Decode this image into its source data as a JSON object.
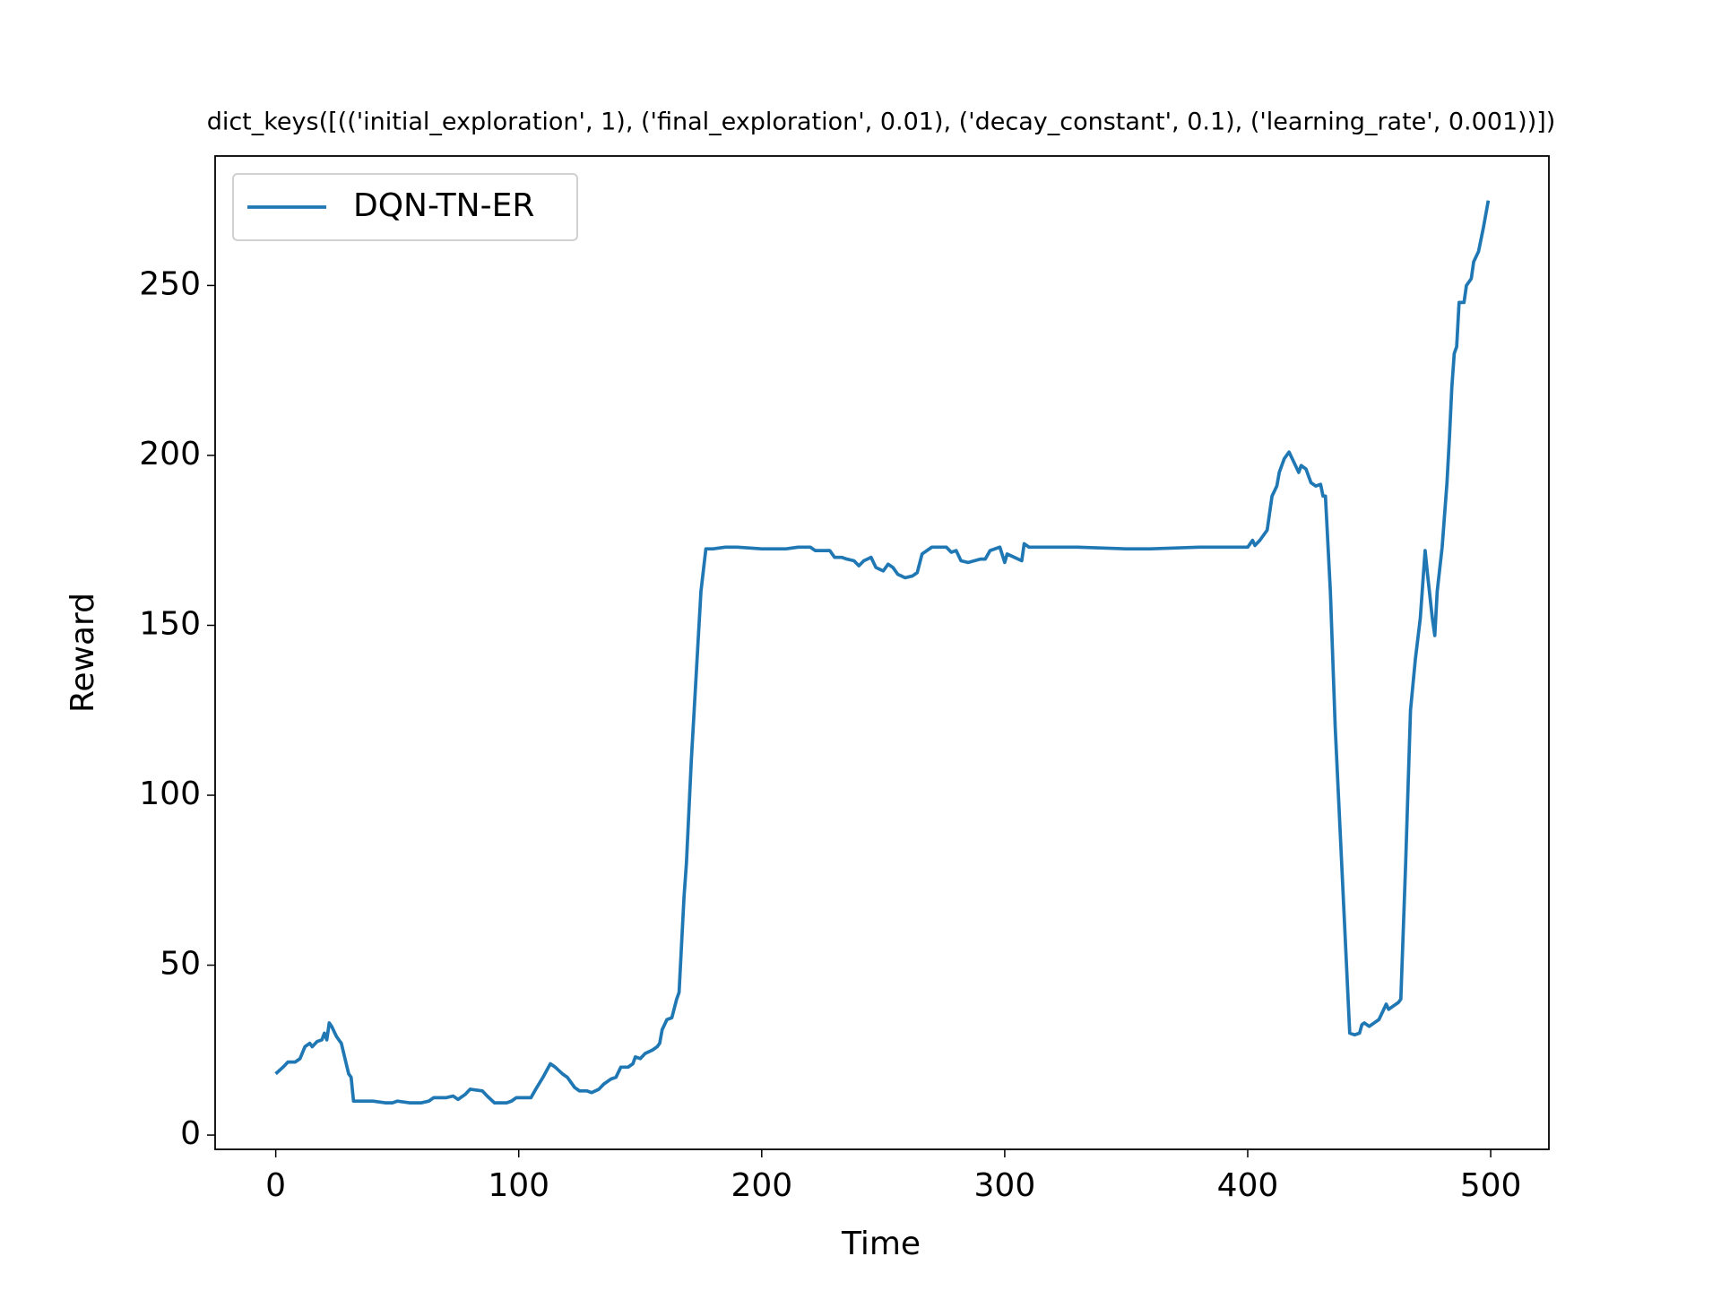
{
  "chart_data": {
    "type": "line",
    "title": "dict_keys([(('initial_exploration', 1), ('final_exploration', 0.01), ('decay_constant', 0.1), ('learning_rate', 0.001))])",
    "x_label": "Time",
    "y_label": "Reward",
    "xlim": [
      -24.95,
      523.95
    ],
    "ylim": [
      -4.2,
      288.1
    ],
    "xticks": [
      0,
      100,
      200,
      300,
      400,
      500
    ],
    "yticks": [
      0,
      50,
      100,
      150,
      200,
      250
    ],
    "legend": "upper left",
    "x": [
      0,
      3,
      5,
      8,
      10,
      12,
      14,
      15,
      17,
      19,
      20,
      21,
      22,
      23,
      25,
      27,
      28,
      30,
      31,
      32,
      35,
      40,
      45,
      48,
      50,
      55,
      60,
      63,
      65,
      70,
      73,
      75,
      78,
      80,
      85,
      87,
      90,
      95,
      97,
      99,
      102,
      105,
      107,
      110,
      113,
      115,
      118,
      120,
      123,
      125,
      128,
      130,
      133,
      135,
      138,
      140,
      142,
      145,
      147,
      148,
      150,
      152,
      155,
      157,
      158,
      159,
      161,
      163,
      165,
      166,
      168,
      169,
      171,
      173,
      175,
      177,
      180,
      185,
      190,
      200,
      210,
      215,
      220,
      222,
      228,
      230,
      233,
      235,
      238,
      240,
      242,
      245,
      247,
      250,
      252,
      254,
      256,
      259,
      262,
      264,
      266,
      270,
      276,
      278,
      280,
      282,
      285,
      290,
      292,
      294,
      298,
      300,
      301,
      304,
      307,
      308,
      310,
      320,
      330,
      350,
      360,
      380,
      400,
      402,
      403,
      405,
      408,
      410,
      412,
      413,
      415,
      417,
      419,
      421,
      422,
      424,
      426,
      428,
      430,
      431,
      432,
      434,
      436,
      438,
      440,
      442,
      444,
      446,
      447,
      448,
      450,
      452,
      454,
      456,
      457,
      458,
      460,
      462,
      463,
      465,
      467,
      469,
      471,
      472,
      473,
      474,
      476,
      477,
      478,
      480,
      482,
      483,
      484,
      485,
      486,
      487,
      489,
      490,
      492,
      493,
      495,
      497,
      499
    ],
    "series": [
      {
        "name": "DQN-TN-ER",
        "color": "#1f77b4",
        "values": [
          18,
          20,
          21.5,
          21.5,
          22.5,
          26,
          27,
          26,
          27.5,
          28,
          30,
          28,
          33,
          32,
          29,
          27,
          24,
          18,
          17,
          10,
          10,
          10,
          9.5,
          9.5,
          10,
          9.5,
          9.5,
          10,
          11,
          11,
          11.5,
          10.5,
          12,
          13.5,
          13,
          11.5,
          9.5,
          9.5,
          10,
          11,
          11,
          11,
          13.5,
          17,
          21,
          20,
          18,
          17,
          14,
          13,
          13,
          12.5,
          13.5,
          15,
          16.5,
          17,
          20,
          20,
          21,
          23,
          22.5,
          24,
          25,
          26,
          27,
          31,
          34,
          34.5,
          40,
          42,
          70,
          80,
          110,
          135,
          160,
          172.5,
          172.5,
          173,
          173,
          172.5,
          172.5,
          173,
          173,
          172,
          172,
          170,
          170,
          169.5,
          169,
          167.5,
          169,
          170,
          167,
          166,
          168,
          167,
          165,
          164,
          164.5,
          165.5,
          171,
          173,
          173,
          171.5,
          172,
          169,
          168.5,
          169.5,
          169.5,
          172,
          173,
          168.5,
          171,
          170,
          169,
          174,
          173,
          173,
          173,
          172.5,
          172.5,
          173,
          173,
          175,
          173.5,
          175,
          178,
          188,
          191,
          195,
          199,
          201,
          198,
          195,
          197,
          196,
          192,
          191,
          191.5,
          188,
          188,
          160,
          120,
          90,
          60,
          30,
          29.5,
          30,
          32.5,
          33,
          32,
          33,
          34,
          37,
          38.5,
          37,
          38,
          39,
          40,
          80,
          125,
          140,
          152,
          162,
          172,
          165,
          152,
          147,
          160,
          173,
          192,
          205,
          220,
          230,
          232,
          245,
          245,
          250,
          252,
          257,
          260,
          267,
          275
        ]
      }
    ]
  }
}
